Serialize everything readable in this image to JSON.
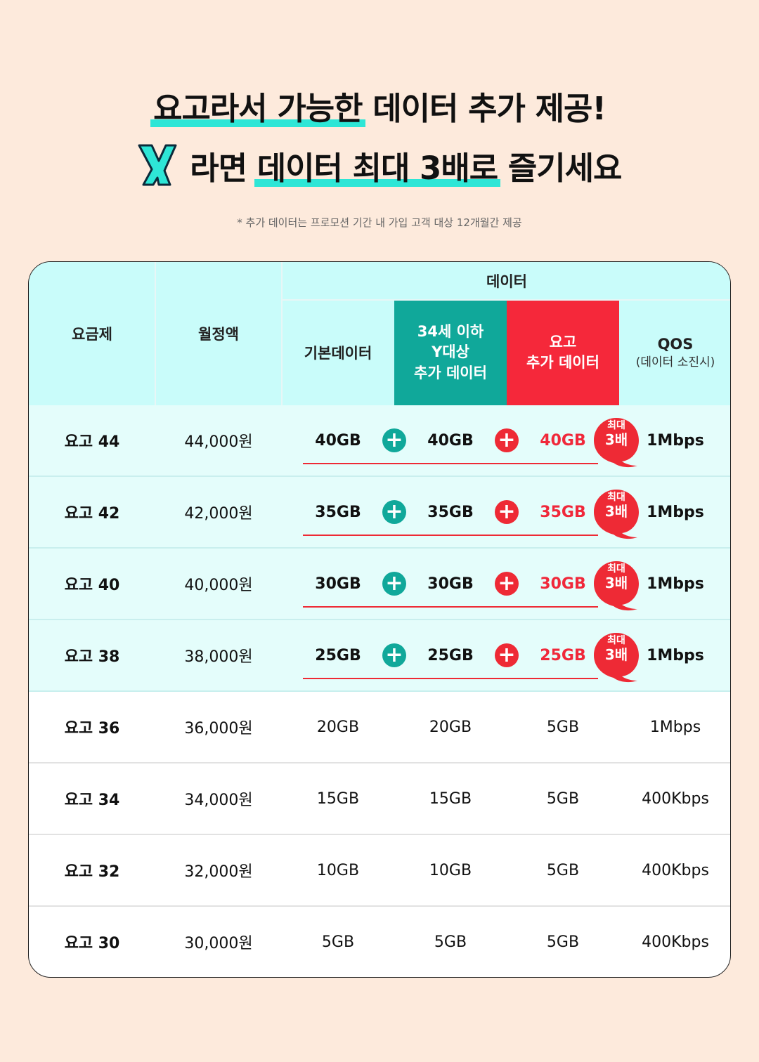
{
  "headline": {
    "line1_highlight": "요고라서 가능한",
    "line1_rest": "데이터 추가 제공!",
    "line2_prefix": "라면",
    "line2_highlight": "데이터 최대 3배로",
    "line2_rest": "즐기세요"
  },
  "footnote": "* 추가 데이터는 프로모션 기간 내 가입 고객 대상 12개월간 제공",
  "table": {
    "headers": {
      "plan": "요금제",
      "price": "월정액",
      "data_group": "데이터",
      "base": "기본데이터",
      "y_extra": [
        "34세 이하",
        "Y대상",
        "추가 데이터"
      ],
      "yogo_extra": [
        "요고",
        "추가 데이터"
      ],
      "qos": "QOS",
      "qos_sub": "(데이터 소진시)"
    },
    "badge": {
      "line1": "최대",
      "line2": "3배"
    },
    "rows": [
      {
        "plan": "요고 44",
        "price": "44,000원",
        "base": "40GB",
        "y_extra": "40GB",
        "yogo_extra": "40GB",
        "qos": "1Mbps",
        "promo": true
      },
      {
        "plan": "요고 42",
        "price": "42,000원",
        "base": "35GB",
        "y_extra": "35GB",
        "yogo_extra": "35GB",
        "qos": "1Mbps",
        "promo": true
      },
      {
        "plan": "요고 40",
        "price": "40,000원",
        "base": "30GB",
        "y_extra": "30GB",
        "yogo_extra": "30GB",
        "qos": "1Mbps",
        "promo": true
      },
      {
        "plan": "요고 38",
        "price": "38,000원",
        "base": "25GB",
        "y_extra": "25GB",
        "yogo_extra": "25GB",
        "qos": "1Mbps",
        "promo": true
      },
      {
        "plan": "요고 36",
        "price": "36,000원",
        "base": "20GB",
        "y_extra": "20GB",
        "yogo_extra": "5GB",
        "qos": "1Mbps",
        "promo": false
      },
      {
        "plan": "요고 34",
        "price": "34,000원",
        "base": "15GB",
        "y_extra": "15GB",
        "yogo_extra": "5GB",
        "qos": "400Kbps",
        "promo": false
      },
      {
        "plan": "요고 32",
        "price": "32,000원",
        "base": "10GB",
        "y_extra": "10GB",
        "yogo_extra": "5GB",
        "qos": "400Kbps",
        "promo": false
      },
      {
        "plan": "요고 30",
        "price": "30,000원",
        "base": "5GB",
        "y_extra": "5GB",
        "yogo_extra": "5GB",
        "qos": "400Kbps",
        "promo": false
      }
    ]
  },
  "colors": {
    "background": "#fdeadc",
    "header_bg": "#c9fcfa",
    "teal": "#10a89a",
    "red": "#f0283a",
    "highlight": "#2ee6d6",
    "promo_row_bg": "#e4fdfb"
  }
}
